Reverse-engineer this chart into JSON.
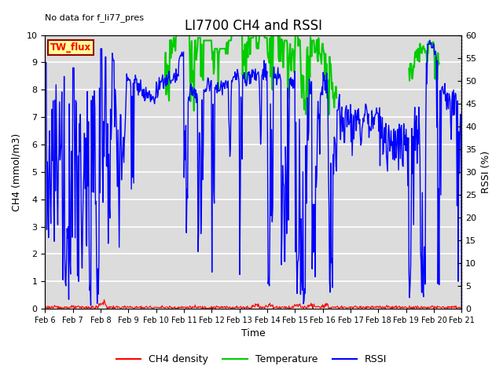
{
  "title": "LI7700 CH4 and RSSI",
  "top_left_text": "No data for f_li77_pres",
  "box_label": "TW_flux",
  "xlabel": "Time",
  "ylabel_left": "CH4 (mmol/m3)",
  "ylabel_right": "RSSI (%)",
  "x_start": 6,
  "x_end": 21,
  "x_ticks": [
    6,
    7,
    8,
    9,
    10,
    11,
    12,
    13,
    14,
    15,
    16,
    17,
    18,
    19,
    20,
    21
  ],
  "x_tick_labels": [
    "Feb 6",
    "Feb 7",
    "Feb 8",
    "Feb 9",
    "Feb 10",
    "Feb 11",
    "Feb 12",
    "Feb 13",
    "Feb 14",
    "Feb 15",
    "Feb 16",
    "Feb 17",
    "Feb 18",
    "Feb 19",
    "Feb 20",
    "Feb 21"
  ],
  "ylim_left": [
    0.0,
    10.0
  ],
  "ylim_right": [
    0,
    60
  ],
  "y_ticks_left": [
    0.0,
    1.0,
    2.0,
    3.0,
    4.0,
    5.0,
    6.0,
    7.0,
    8.0,
    9.0,
    10.0
  ],
  "y_ticks_right": [
    0,
    5,
    10,
    15,
    20,
    25,
    30,
    35,
    40,
    45,
    50,
    55,
    60
  ],
  "plot_bg_color": "#dcdcdc",
  "grid_color": "#ffffff",
  "ch4_color": "#ff0000",
  "temp_color": "#00cc00",
  "rssi_color": "#0000ff",
  "legend_items": [
    "CH4 density",
    "Temperature",
    "RSSI"
  ],
  "box_facecolor": "#ffff99",
  "box_edgecolor": "#990000"
}
